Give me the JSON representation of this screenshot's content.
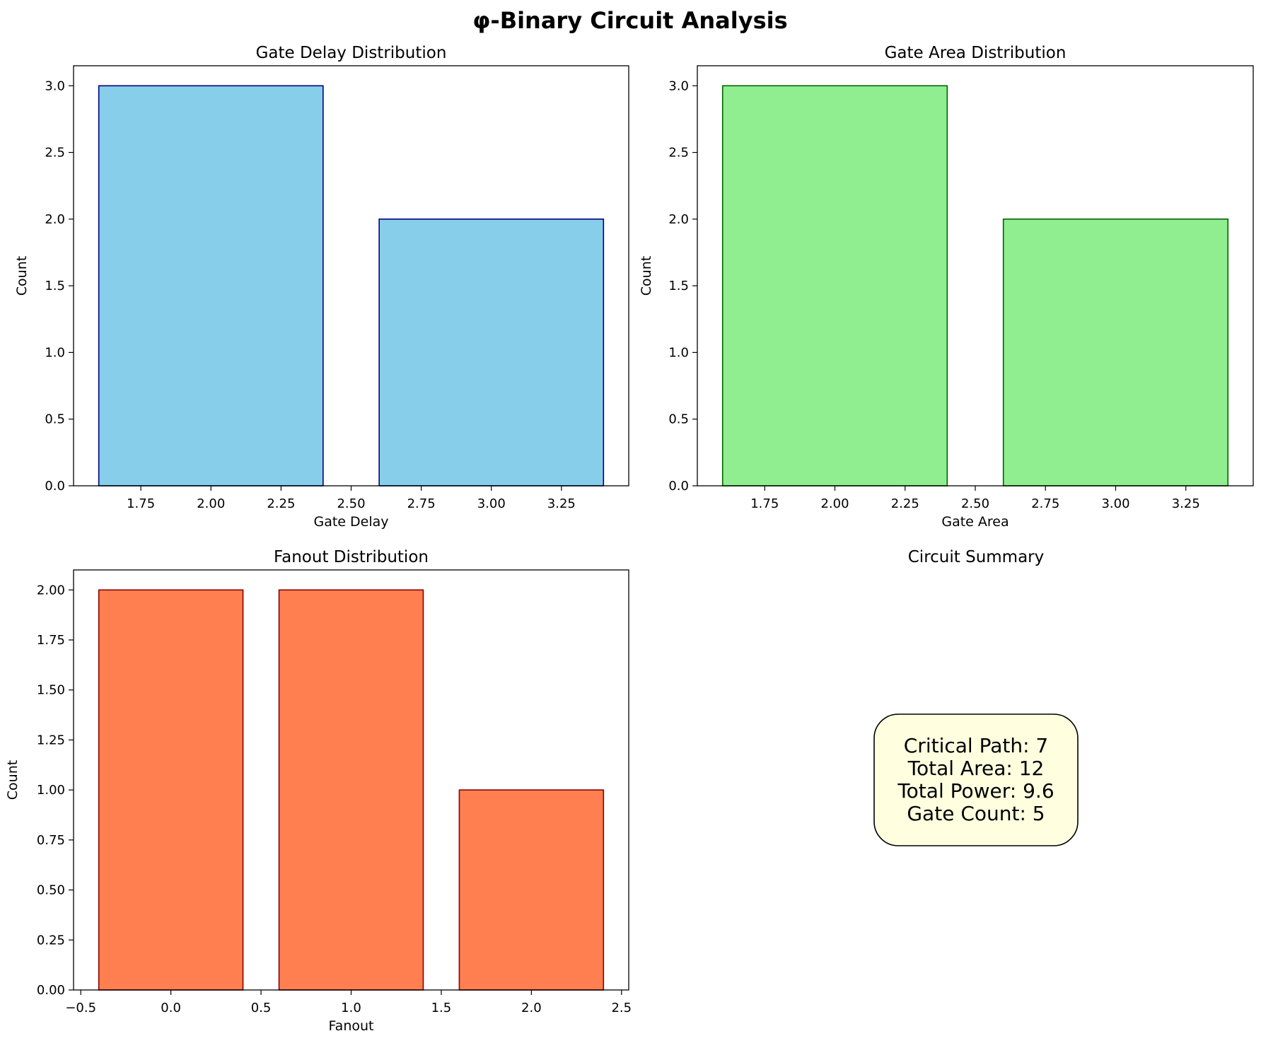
{
  "figure": {
    "title": "φ-Binary Circuit Analysis"
  },
  "chart_data": [
    {
      "type": "bar",
      "title": "Gate Delay Distribution",
      "xlabel": "Gate Delay",
      "ylabel": "Count",
      "x": [
        2,
        3
      ],
      "values": [
        3,
        2
      ],
      "bar_width": 0.8,
      "xlim": [
        1.51,
        3.49
      ],
      "ylim": [
        0,
        3.15
      ],
      "xticks": [
        1.75,
        2.0,
        2.25,
        2.5,
        2.75,
        3.0,
        3.25
      ],
      "xtick_labels": [
        "1.75",
        "2.00",
        "2.25",
        "2.50",
        "2.75",
        "3.00",
        "3.25"
      ],
      "yticks": [
        0,
        0.5,
        1.0,
        1.5,
        2.0,
        2.5,
        3.0
      ],
      "ytick_labels": [
        "0.0",
        "0.5",
        "1.0",
        "1.5",
        "2.0",
        "2.5",
        "3.0"
      ],
      "grid": false,
      "colors": {
        "fill": "#87ceeb",
        "edge": "#000080"
      }
    },
    {
      "type": "bar",
      "title": "Gate Area Distribution",
      "xlabel": "Gate Area",
      "ylabel": "Count",
      "x": [
        2,
        3
      ],
      "values": [
        3,
        2
      ],
      "bar_width": 0.8,
      "xlim": [
        1.51,
        3.49
      ],
      "ylim": [
        0,
        3.15
      ],
      "xticks": [
        1.75,
        2.0,
        2.25,
        2.5,
        2.75,
        3.0,
        3.25
      ],
      "xtick_labels": [
        "1.75",
        "2.00",
        "2.25",
        "2.50",
        "2.75",
        "3.00",
        "3.25"
      ],
      "yticks": [
        0,
        0.5,
        1.0,
        1.5,
        2.0,
        2.5,
        3.0
      ],
      "ytick_labels": [
        "0.0",
        "0.5",
        "1.0",
        "1.5",
        "2.0",
        "2.5",
        "3.0"
      ],
      "grid": false,
      "colors": {
        "fill": "#90ee90",
        "edge": "#006400"
      }
    },
    {
      "type": "bar",
      "title": "Fanout Distribution",
      "xlabel": "Fanout",
      "ylabel": "Count",
      "x": [
        0,
        1,
        2
      ],
      "values": [
        2,
        2,
        1
      ],
      "bar_width": 0.8,
      "xlim": [
        -0.54,
        2.54
      ],
      "ylim": [
        0,
        2.1
      ],
      "xticks": [
        -0.5,
        0.0,
        0.5,
        1.0,
        1.5,
        2.0,
        2.5
      ],
      "xtick_labels": [
        "−0.5",
        "0.0",
        "0.5",
        "1.0",
        "1.5",
        "2.0",
        "2.5"
      ],
      "yticks": [
        0,
        0.25,
        0.5,
        0.75,
        1.0,
        1.25,
        1.5,
        1.75,
        2.0
      ],
      "ytick_labels": [
        "0.00",
        "0.25",
        "0.50",
        "0.75",
        "1.00",
        "1.25",
        "1.50",
        "1.75",
        "2.00"
      ],
      "grid": false,
      "colors": {
        "fill": "#ff7f50",
        "edge": "#8b0000"
      }
    }
  ],
  "summary": {
    "title": "Circuit Summary",
    "lines": [
      "Critical Path: 7",
      "Total Area: 12",
      "Total Power: 9.6",
      "Gate Count: 5"
    ],
    "colors": {
      "fill": "#ffffe0",
      "edge": "#000000"
    }
  }
}
